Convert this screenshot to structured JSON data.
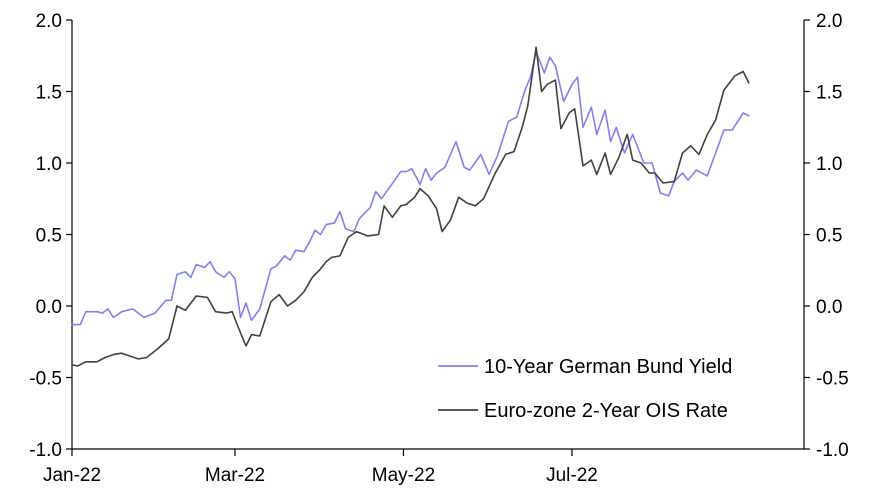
{
  "chart_data": {
    "type": "line",
    "title": "",
    "xlabel": "",
    "ylabel": "",
    "ylim": [
      -1.0,
      2.0
    ],
    "y_ticks": [
      "-1.0",
      "-0.5",
      "0.0",
      "0.5",
      "1.0",
      "1.5",
      "2.0"
    ],
    "y_ticks_right": [
      "-1.0",
      "-0.5",
      "0.0",
      "0.5",
      "1.0",
      "1.5",
      "2.0"
    ],
    "x_tick_labels": [
      {
        "label": "Jan-22",
        "date": "2022-01-01"
      },
      {
        "label": "Mar-22",
        "date": "2022-03-01"
      },
      {
        "label": "May-22",
        "date": "2022-05-01"
      },
      {
        "label": "Jul-22",
        "date": "2022-07-01"
      }
    ],
    "x_range": [
      "2022-01-01",
      "2022-09-23"
    ],
    "grid": false,
    "legend_position": "bottom-right",
    "series": [
      {
        "name": "10-Year German Bund Yield",
        "color": "#8080f0",
        "points": [
          [
            "2022-01-01",
            -0.13
          ],
          [
            "2022-01-04",
            -0.13
          ],
          [
            "2022-01-06",
            -0.04
          ],
          [
            "2022-01-10",
            -0.04
          ],
          [
            "2022-01-12",
            -0.05
          ],
          [
            "2022-01-14",
            -0.02
          ],
          [
            "2022-01-16",
            -0.08
          ],
          [
            "2022-01-19",
            -0.04
          ],
          [
            "2022-01-23",
            -0.02
          ],
          [
            "2022-01-27",
            -0.08
          ],
          [
            "2022-01-31",
            -0.05
          ],
          [
            "2022-02-04",
            0.04
          ],
          [
            "2022-02-06",
            0.04
          ],
          [
            "2022-02-08",
            0.22
          ],
          [
            "2022-02-11",
            0.24
          ],
          [
            "2022-02-13",
            0.2
          ],
          [
            "2022-02-15",
            0.29
          ],
          [
            "2022-02-18",
            0.27
          ],
          [
            "2022-02-20",
            0.31
          ],
          [
            "2022-02-22",
            0.24
          ],
          [
            "2022-02-25",
            0.2
          ],
          [
            "2022-02-27",
            0.24
          ],
          [
            "2022-03-01",
            0.19
          ],
          [
            "2022-03-03",
            -0.08
          ],
          [
            "2022-03-05",
            0.02
          ],
          [
            "2022-03-07",
            -0.1
          ],
          [
            "2022-03-10",
            -0.02
          ],
          [
            "2022-03-14",
            0.26
          ],
          [
            "2022-03-16",
            0.28
          ],
          [
            "2022-03-19",
            0.35
          ],
          [
            "2022-03-21",
            0.32
          ],
          [
            "2022-03-23",
            0.39
          ],
          [
            "2022-03-26",
            0.38
          ],
          [
            "2022-03-28",
            0.45
          ],
          [
            "2022-03-30",
            0.53
          ],
          [
            "2022-04-01",
            0.5
          ],
          [
            "2022-04-03",
            0.57
          ],
          [
            "2022-04-06",
            0.58
          ],
          [
            "2022-04-08",
            0.66
          ],
          [
            "2022-04-10",
            0.54
          ],
          [
            "2022-04-13",
            0.52
          ],
          [
            "2022-04-15",
            0.61
          ],
          [
            "2022-04-19",
            0.69
          ],
          [
            "2022-04-21",
            0.8
          ],
          [
            "2022-04-23",
            0.75
          ],
          [
            "2022-04-26",
            0.83
          ],
          [
            "2022-04-30",
            0.94
          ],
          [
            "2022-05-02",
            0.94
          ],
          [
            "2022-05-04",
            0.96
          ],
          [
            "2022-05-07",
            0.85
          ],
          [
            "2022-05-09",
            0.96
          ],
          [
            "2022-05-11",
            0.88
          ],
          [
            "2022-05-13",
            0.93
          ],
          [
            "2022-05-16",
            0.97
          ],
          [
            "2022-05-20",
            1.15
          ],
          [
            "2022-05-23",
            0.97
          ],
          [
            "2022-05-25",
            0.95
          ],
          [
            "2022-05-29",
            1.06
          ],
          [
            "2022-06-01",
            0.92
          ],
          [
            "2022-06-04",
            1.05
          ],
          [
            "2022-06-08",
            1.29
          ],
          [
            "2022-06-11",
            1.32
          ],
          [
            "2022-06-14",
            1.51
          ],
          [
            "2022-06-16",
            1.6
          ],
          [
            "2022-06-18",
            1.78
          ],
          [
            "2022-06-21",
            1.63
          ],
          [
            "2022-06-23",
            1.74
          ],
          [
            "2022-06-25",
            1.68
          ],
          [
            "2022-06-28",
            1.43
          ],
          [
            "2022-07-01",
            1.55
          ],
          [
            "2022-07-03",
            1.6
          ],
          [
            "2022-07-05",
            1.25
          ],
          [
            "2022-07-08",
            1.39
          ],
          [
            "2022-07-10",
            1.2
          ],
          [
            "2022-07-13",
            1.37
          ],
          [
            "2022-07-15",
            1.15
          ],
          [
            "2022-07-17",
            1.25
          ],
          [
            "2022-07-20",
            1.07
          ],
          [
            "2022-07-23",
            1.2
          ],
          [
            "2022-07-27",
            1.0
          ],
          [
            "2022-07-30",
            1.0
          ],
          [
            "2022-08-02",
            0.79
          ],
          [
            "2022-08-05",
            0.77
          ],
          [
            "2022-08-07",
            0.87
          ],
          [
            "2022-08-10",
            0.93
          ],
          [
            "2022-08-12",
            0.88
          ],
          [
            "2022-08-15",
            0.95
          ],
          [
            "2022-08-19",
            0.91
          ],
          [
            "2022-08-22",
            1.07
          ],
          [
            "2022-08-25",
            1.23
          ],
          [
            "2022-08-28",
            1.23
          ],
          [
            "2022-09-01",
            1.35
          ],
          [
            "2022-09-03",
            1.33
          ]
        ]
      },
      {
        "name": "Euro-zone 2-Year OIS Rate",
        "color": "#404040",
        "points": [
          [
            "2022-01-01",
            -0.41
          ],
          [
            "2022-01-03",
            -0.42
          ],
          [
            "2022-01-06",
            -0.39
          ],
          [
            "2022-01-10",
            -0.39
          ],
          [
            "2022-01-13",
            -0.36
          ],
          [
            "2022-01-16",
            -0.34
          ],
          [
            "2022-01-19",
            -0.33
          ],
          [
            "2022-01-22",
            -0.35
          ],
          [
            "2022-01-25",
            -0.37
          ],
          [
            "2022-01-28",
            -0.36
          ],
          [
            "2022-02-01",
            -0.3
          ],
          [
            "2022-02-05",
            -0.23
          ],
          [
            "2022-02-08",
            0.0
          ],
          [
            "2022-02-11",
            -0.03
          ],
          [
            "2022-02-13",
            0.02
          ],
          [
            "2022-02-15",
            0.07
          ],
          [
            "2022-02-19",
            0.06
          ],
          [
            "2022-02-22",
            -0.04
          ],
          [
            "2022-02-26",
            -0.05
          ],
          [
            "2022-02-28",
            -0.04
          ],
          [
            "2022-03-02",
            -0.14
          ],
          [
            "2022-03-05",
            -0.28
          ],
          [
            "2022-03-07",
            -0.2
          ],
          [
            "2022-03-10",
            -0.21
          ],
          [
            "2022-03-14",
            0.03
          ],
          [
            "2022-03-17",
            0.08
          ],
          [
            "2022-03-20",
            0.0
          ],
          [
            "2022-03-23",
            0.04
          ],
          [
            "2022-03-26",
            0.1
          ],
          [
            "2022-03-29",
            0.2
          ],
          [
            "2022-04-01",
            0.26
          ],
          [
            "2022-04-03",
            0.31
          ],
          [
            "2022-04-05",
            0.34
          ],
          [
            "2022-04-08",
            0.35
          ],
          [
            "2022-04-11",
            0.48
          ],
          [
            "2022-04-14",
            0.52
          ],
          [
            "2022-04-18",
            0.49
          ],
          [
            "2022-04-22",
            0.5
          ],
          [
            "2022-04-24",
            0.7
          ],
          [
            "2022-04-27",
            0.62
          ],
          [
            "2022-04-30",
            0.7
          ],
          [
            "2022-05-02",
            0.71
          ],
          [
            "2022-05-05",
            0.76
          ],
          [
            "2022-05-07",
            0.82
          ],
          [
            "2022-05-10",
            0.77
          ],
          [
            "2022-05-13",
            0.68
          ],
          [
            "2022-05-15",
            0.52
          ],
          [
            "2022-05-18",
            0.6
          ],
          [
            "2022-05-21",
            0.76
          ],
          [
            "2022-05-24",
            0.72
          ],
          [
            "2022-05-27",
            0.7
          ],
          [
            "2022-05-30",
            0.75
          ],
          [
            "2022-06-03",
            0.92
          ],
          [
            "2022-06-07",
            1.06
          ],
          [
            "2022-06-10",
            1.08
          ],
          [
            "2022-06-13",
            1.25
          ],
          [
            "2022-06-15",
            1.4
          ],
          [
            "2022-06-18",
            1.81
          ],
          [
            "2022-06-20",
            1.5
          ],
          [
            "2022-06-22",
            1.55
          ],
          [
            "2022-06-25",
            1.58
          ],
          [
            "2022-06-27",
            1.24
          ],
          [
            "2022-06-30",
            1.35
          ],
          [
            "2022-07-02",
            1.38
          ],
          [
            "2022-07-05",
            0.98
          ],
          [
            "2022-07-08",
            1.02
          ],
          [
            "2022-07-10",
            0.92
          ],
          [
            "2022-07-13",
            1.07
          ],
          [
            "2022-07-15",
            0.92
          ],
          [
            "2022-07-18",
            1.04
          ],
          [
            "2022-07-21",
            1.2
          ],
          [
            "2022-07-23",
            1.02
          ],
          [
            "2022-07-26",
            1.0
          ],
          [
            "2022-07-29",
            0.93
          ],
          [
            "2022-07-31",
            0.93
          ],
          [
            "2022-08-03",
            0.86
          ],
          [
            "2022-08-07",
            0.87
          ],
          [
            "2022-08-10",
            1.07
          ],
          [
            "2022-08-13",
            1.12
          ],
          [
            "2022-08-16",
            1.06
          ],
          [
            "2022-08-19",
            1.2
          ],
          [
            "2022-08-22",
            1.3
          ],
          [
            "2022-08-25",
            1.51
          ],
          [
            "2022-08-29",
            1.61
          ],
          [
            "2022-09-01",
            1.64
          ],
          [
            "2022-09-03",
            1.56
          ]
        ]
      }
    ]
  }
}
